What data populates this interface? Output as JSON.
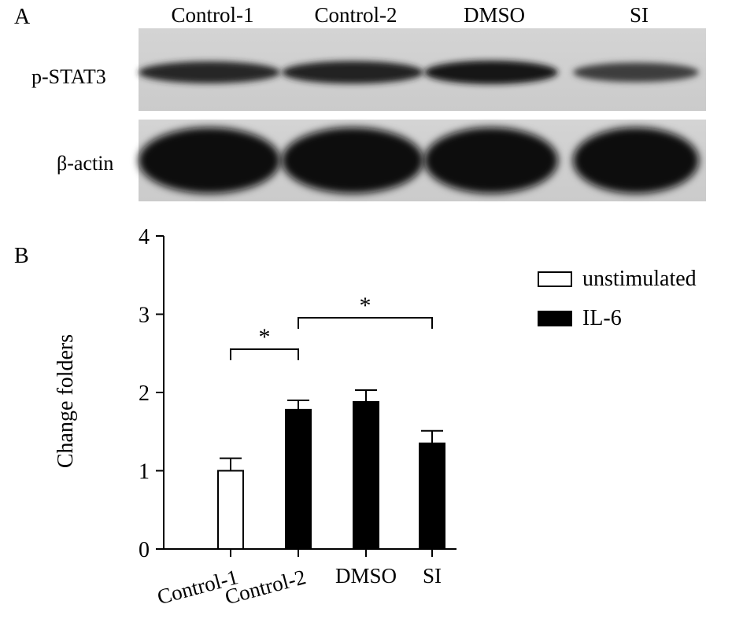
{
  "panel_a": {
    "label": "A",
    "lanes": [
      "Control-1",
      "Control-2",
      "DMSO",
      "SI"
    ],
    "rows": [
      {
        "name": "p-STAT3",
        "band_intensity": [
          0.72,
          0.78,
          0.86,
          0.5
        ]
      },
      {
        "name": "β-actin",
        "band_intensity": [
          1.0,
          1.0,
          1.0,
          1.0
        ]
      }
    ]
  },
  "panel_b": {
    "label": "B",
    "chart_data": {
      "type": "bar",
      "categories": [
        "Control-1",
        "Control-2",
        "DMSO",
        "SI"
      ],
      "values": [
        1.0,
        1.78,
        1.88,
        1.35
      ],
      "errors": [
        0.16,
        0.12,
        0.15,
        0.16
      ],
      "groups": [
        "unstimulated",
        "IL-6",
        "IL-6",
        "IL-6"
      ],
      "ylabel": "Change folders",
      "ylim": [
        0,
        4
      ],
      "yticks": [
        "0",
        "1",
        "2",
        "3",
        "4"
      ],
      "legend": [
        {
          "name": "unstimulated",
          "color": "#ffffff"
        },
        {
          "name": "IL-6",
          "color": "#000000"
        }
      ],
      "significance": [
        {
          "from": "Control-1",
          "to": "Control-2",
          "label": "*"
        },
        {
          "from": "Control-2",
          "to": "SI",
          "label": "*"
        }
      ],
      "legend_position": "top-right",
      "grid": false
    }
  }
}
